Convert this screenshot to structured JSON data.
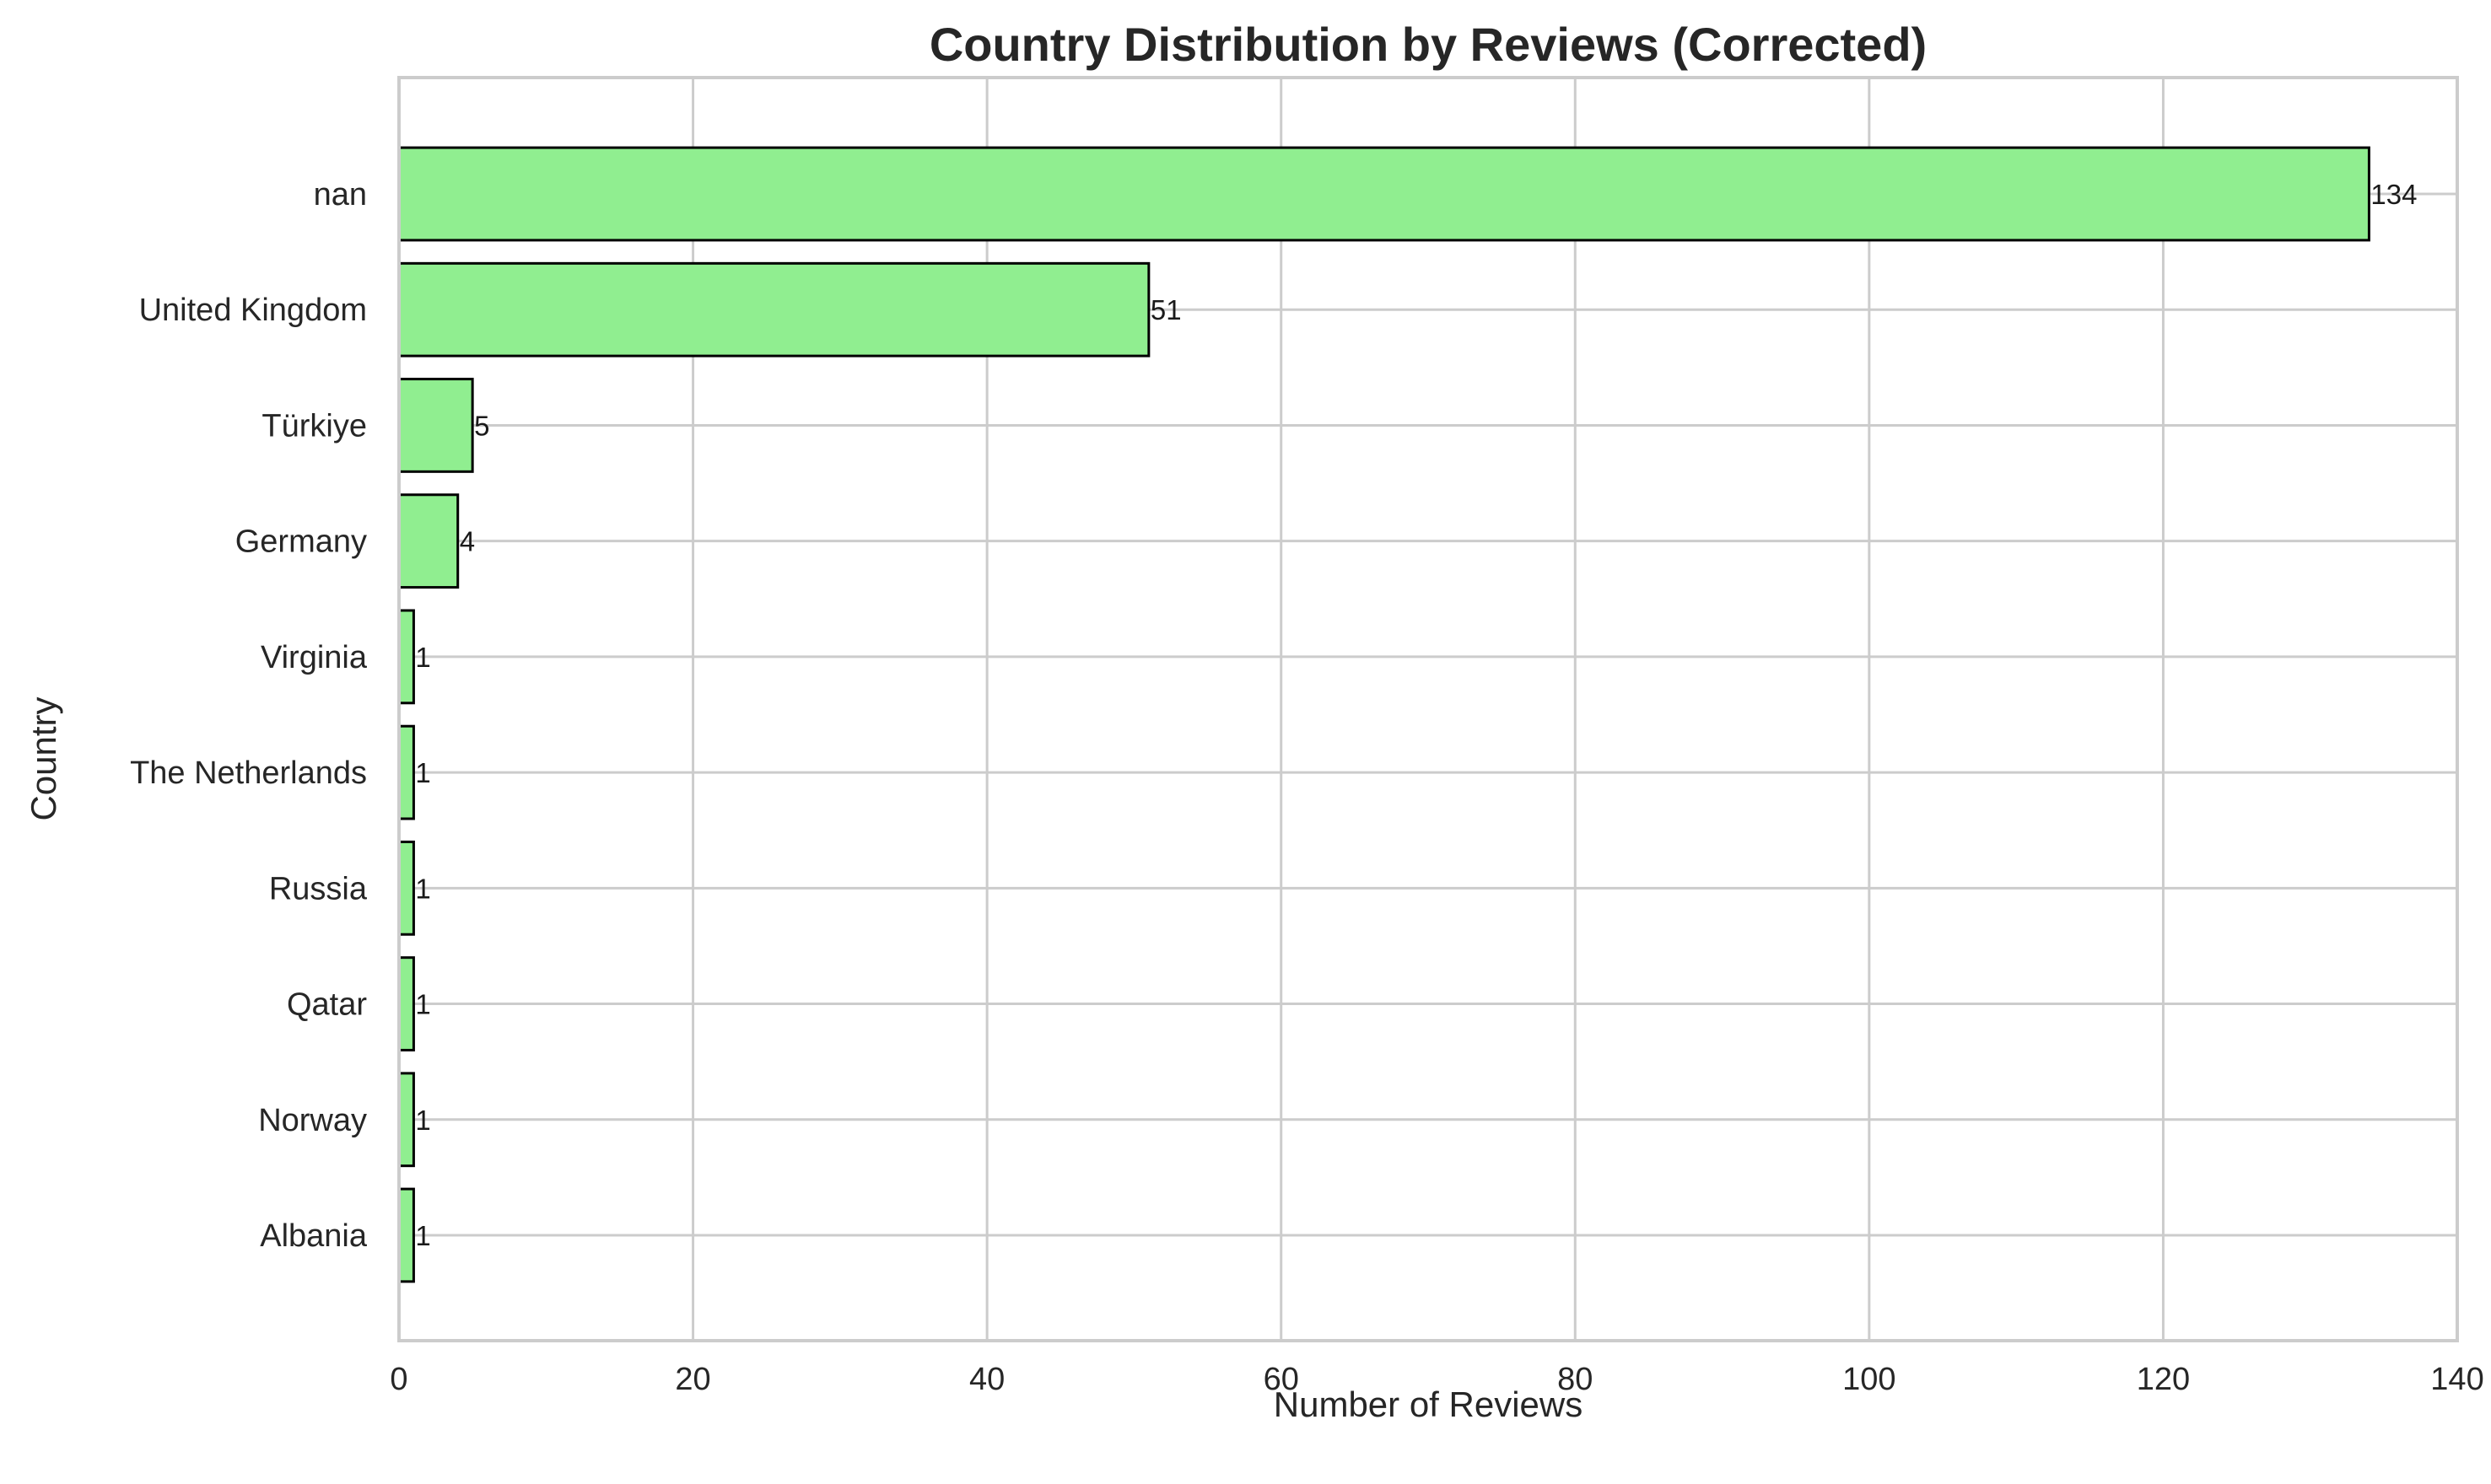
{
  "chart_data": {
    "type": "bar",
    "orientation": "horizontal",
    "title": "Country Distribution by Reviews (Corrected)",
    "xlabel": "Number of Reviews",
    "ylabel": "Country",
    "categories": [
      "nan",
      "United Kingdom",
      "Türkiye",
      "Germany",
      "Virginia",
      "The Netherlands",
      "Russia",
      "Qatar",
      "Norway",
      "Albania"
    ],
    "values": [
      134,
      51,
      5,
      4,
      1,
      1,
      1,
      1,
      1,
      1
    ],
    "data_labels": [
      "134",
      "51",
      "5",
      "4",
      "1",
      "1",
      "1",
      "1",
      "1",
      "1"
    ],
    "xlim": [
      0,
      140
    ],
    "x_ticks": [
      0,
      20,
      40,
      60,
      80,
      100,
      120,
      140
    ],
    "x_tick_labels": [
      "0",
      "20",
      "40",
      "60",
      "80",
      "100",
      "120",
      "140"
    ],
    "grid": true,
    "legend": "none",
    "colors": {
      "bar_fill": "#90ee90",
      "bar_edge": "#000000",
      "grid": "#cccccc",
      "spine": "#cccccc",
      "text": "#262626"
    }
  }
}
